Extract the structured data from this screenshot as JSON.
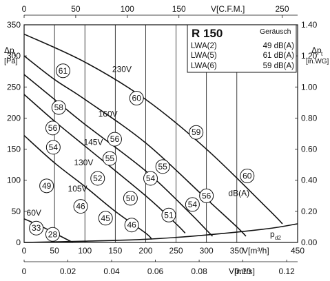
{
  "chart_data": {
    "type": "line",
    "title": "R 150",
    "legend_box": {
      "heading": "Geräusch",
      "rows": [
        {
          "label": "LWA(2)",
          "value": "49 dB(A)"
        },
        {
          "label": "LWA(5)",
          "value": "61 dB(A)"
        },
        {
          "label": "LWA(6)",
          "value": "59 dB(A)"
        }
      ]
    },
    "x_bottom_1": {
      "label": "V[m³/h]",
      "range": [
        0,
        450
      ],
      "ticks": [
        "0",
        "50",
        "100",
        "150",
        "200",
        "250",
        "300",
        "350",
        "450"
      ],
      "tick_values": [
        0,
        50,
        100,
        150,
        200,
        250,
        300,
        350,
        450
      ]
    },
    "x_bottom_2": {
      "label": "V[m³/s]",
      "range": [
        0,
        0.125
      ],
      "ticks": [
        "0",
        "0.02",
        "0.04",
        "0.06",
        "0.08",
        "0.10",
        "0.12"
      ],
      "tick_values": [
        0,
        0.02,
        0.04,
        0.06,
        0.08,
        0.1,
        0.12
      ]
    },
    "x_top": {
      "label": "V[C.F.M.]",
      "range": [
        0,
        265
      ],
      "ticks": [
        "0",
        "50",
        "100",
        "150",
        "250"
      ],
      "tick_values": [
        0,
        50,
        100,
        150,
        250
      ]
    },
    "y_left": {
      "label_main": "Δp",
      "label_sub": "t",
      "unit": "[Pa]",
      "range": [
        0,
        350
      ],
      "ticks": [
        "0",
        "50",
        "100",
        "150",
        "200",
        "250",
        "300",
        "350"
      ],
      "tick_values": [
        0,
        50,
        100,
        150,
        200,
        250,
        300,
        350
      ]
    },
    "y_right": {
      "label_main": "Δp",
      "label_sub": "t",
      "unit": "[in.WG]",
      "range": [
        0,
        1.4
      ],
      "ticks": [
        "0.00",
        "0.20",
        "0.40",
        "0.60",
        "0.80",
        "1.00",
        "1.20",
        "1.40"
      ],
      "tick_values": [
        0,
        0.2,
        0.4,
        0.6,
        0.8,
        1.0,
        1.2,
        1.4
      ]
    },
    "grid_x": [
      0,
      50,
      100,
      150,
      200,
      250,
      300,
      350
    ],
    "series": [
      {
        "name": "230V",
        "points": [
          [
            0,
            335
          ],
          [
            100,
            290
          ],
          [
            200,
            230
          ],
          [
            300,
            150
          ],
          [
            400,
            55
          ],
          [
            425,
            30
          ]
        ]
      },
      {
        "name": "160V",
        "points": [
          [
            0,
            300
          ],
          [
            50,
            262
          ],
          [
            100,
            230
          ],
          [
            200,
            160
          ],
          [
            300,
            70
          ],
          [
            350,
            25
          ],
          [
            365,
            10
          ]
        ]
      },
      {
        "name": "145V",
        "points": [
          [
            0,
            270
          ],
          [
            50,
            230
          ],
          [
            100,
            190
          ],
          [
            200,
            115
          ],
          [
            270,
            50
          ],
          [
            300,
            20
          ],
          [
            310,
            10
          ]
        ]
      },
      {
        "name": "130V",
        "points": [
          [
            0,
            238
          ],
          [
            50,
            195
          ],
          [
            100,
            155
          ],
          [
            200,
            75
          ],
          [
            250,
            30
          ],
          [
            265,
            15
          ]
        ]
      },
      {
        "name": "105V",
        "points": [
          [
            0,
            172
          ],
          [
            50,
            128
          ],
          [
            100,
            90
          ],
          [
            150,
            50
          ],
          [
            200,
            15
          ],
          [
            210,
            5
          ]
        ]
      },
      {
        "name": "60V",
        "points": [
          [
            0,
            38
          ],
          [
            30,
            25
          ],
          [
            50,
            15
          ],
          [
            70,
            5
          ],
          [
            80,
            0
          ]
        ]
      }
    ],
    "system_curve": {
      "label": "p",
      "label_sub": "d2",
      "points": [
        [
          0,
          0
        ],
        [
          100,
          2
        ],
        [
          200,
          5
        ],
        [
          300,
          12
        ],
        [
          400,
          22
        ],
        [
          450,
          30
        ]
      ]
    },
    "series_labels": [
      {
        "text": "230V",
        "x": 145,
        "y": 274
      },
      {
        "text": "160V",
        "x": 122,
        "y": 202
      },
      {
        "text": "145V",
        "x": 98,
        "y": 157
      },
      {
        "text": "130V",
        "x": 82,
        "y": 124
      },
      {
        "text": "105V",
        "x": 72,
        "y": 82
      },
      {
        "text": "60V",
        "x": 4,
        "y": 43
      },
      {
        "text": "dB(A)",
        "x": 336,
        "y": 75
      }
    ],
    "noise_markers": [
      {
        "value": "61",
        "x": 64,
        "y": 276
      },
      {
        "value": "60",
        "x": 185,
        "y": 232
      },
      {
        "value": "59",
        "x": 283,
        "y": 177
      },
      {
        "value": "60",
        "x": 367,
        "y": 107
      },
      {
        "value": "58",
        "x": 57,
        "y": 217
      },
      {
        "value": "56",
        "x": 47,
        "y": 184
      },
      {
        "value": "56",
        "x": 149,
        "y": 166
      },
      {
        "value": "55",
        "x": 141,
        "y": 135
      },
      {
        "value": "55",
        "x": 228,
        "y": 122
      },
      {
        "value": "54",
        "x": 48,
        "y": 153
      },
      {
        "value": "52",
        "x": 121,
        "y": 103
      },
      {
        "value": "54",
        "x": 208,
        "y": 103
      },
      {
        "value": "56",
        "x": 300,
        "y": 75
      },
      {
        "value": "49",
        "x": 37,
        "y": 91
      },
      {
        "value": "50",
        "x": 175,
        "y": 71
      },
      {
        "value": "54",
        "x": 277,
        "y": 61
      },
      {
        "value": "46",
        "x": 93,
        "y": 58
      },
      {
        "value": "45",
        "x": 134,
        "y": 39
      },
      {
        "value": "46",
        "x": 177,
        "y": 28
      },
      {
        "value": "51",
        "x": 238,
        "y": 44
      },
      {
        "value": "33",
        "x": 20,
        "y": 23
      },
      {
        "value": "28",
        "x": 47,
        "y": 13
      }
    ]
  }
}
